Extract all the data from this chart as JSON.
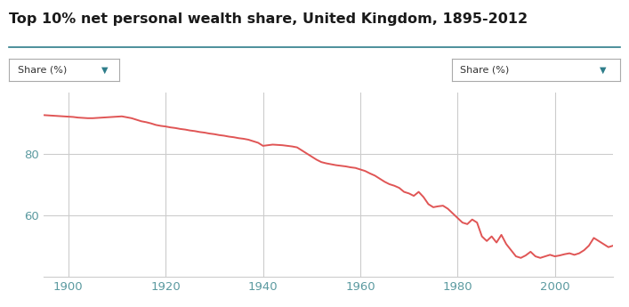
{
  "title": "Top 10% net personal wealth share, United Kingdom, 1895-2012",
  "dropdown_label": "Share (%)",
  "line_color": "#e05555",
  "background_color": "#ffffff",
  "grid_color": "#cccccc",
  "title_color": "#1a1a1a",
  "axis_tick_color": "#5b9aa0",
  "title_line_color": "#2e7d8a",
  "ylim": [
    40,
    100
  ],
  "xlim": [
    1895,
    2012
  ],
  "yticks": [
    60,
    80
  ],
  "xticks": [
    1900,
    1920,
    1940,
    1960,
    1980,
    2000
  ],
  "data": [
    [
      1895,
      92.5
    ],
    [
      1896,
      92.4
    ],
    [
      1897,
      92.3
    ],
    [
      1898,
      92.2
    ],
    [
      1899,
      92.1
    ],
    [
      1900,
      92.0
    ],
    [
      1901,
      91.9
    ],
    [
      1902,
      91.7
    ],
    [
      1903,
      91.6
    ],
    [
      1904,
      91.5
    ],
    [
      1905,
      91.5
    ],
    [
      1906,
      91.6
    ],
    [
      1907,
      91.7
    ],
    [
      1908,
      91.8
    ],
    [
      1909,
      91.9
    ],
    [
      1910,
      92.0
    ],
    [
      1911,
      92.1
    ],
    [
      1912,
      91.8
    ],
    [
      1913,
      91.5
    ],
    [
      1914,
      91.0
    ],
    [
      1915,
      90.5
    ],
    [
      1916,
      90.2
    ],
    [
      1917,
      89.8
    ],
    [
      1918,
      89.3
    ],
    [
      1919,
      89.0
    ],
    [
      1920,
      88.8
    ],
    [
      1921,
      88.5
    ],
    [
      1922,
      88.3
    ],
    [
      1923,
      88.0
    ],
    [
      1924,
      87.8
    ],
    [
      1925,
      87.5
    ],
    [
      1926,
      87.3
    ],
    [
      1927,
      87.0
    ],
    [
      1928,
      86.8
    ],
    [
      1929,
      86.5
    ],
    [
      1930,
      86.3
    ],
    [
      1931,
      86.0
    ],
    [
      1932,
      85.8
    ],
    [
      1933,
      85.5
    ],
    [
      1934,
      85.3
    ],
    [
      1935,
      85.0
    ],
    [
      1936,
      84.8
    ],
    [
      1937,
      84.5
    ],
    [
      1938,
      84.0
    ],
    [
      1939,
      83.5
    ],
    [
      1940,
      82.5
    ],
    [
      1941,
      82.7
    ],
    [
      1942,
      82.9
    ],
    [
      1943,
      82.8
    ],
    [
      1944,
      82.7
    ],
    [
      1945,
      82.5
    ],
    [
      1946,
      82.3
    ],
    [
      1947,
      82.0
    ],
    [
      1948,
      81.0
    ],
    [
      1949,
      80.0
    ],
    [
      1950,
      79.0
    ],
    [
      1951,
      78.0
    ],
    [
      1952,
      77.2
    ],
    [
      1953,
      76.8
    ],
    [
      1954,
      76.5
    ],
    [
      1955,
      76.2
    ],
    [
      1956,
      76.0
    ],
    [
      1957,
      75.8
    ],
    [
      1958,
      75.5
    ],
    [
      1959,
      75.3
    ],
    [
      1960,
      74.8
    ],
    [
      1961,
      74.3
    ],
    [
      1962,
      73.5
    ],
    [
      1963,
      72.8
    ],
    [
      1964,
      71.8
    ],
    [
      1965,
      70.8
    ],
    [
      1966,
      70.0
    ],
    [
      1967,
      69.5
    ],
    [
      1968,
      68.8
    ],
    [
      1969,
      67.5
    ],
    [
      1970,
      67.0
    ],
    [
      1971,
      66.2
    ],
    [
      1972,
      67.5
    ],
    [
      1973,
      65.8
    ],
    [
      1974,
      63.5
    ],
    [
      1975,
      62.5
    ],
    [
      1976,
      62.8
    ],
    [
      1977,
      63.0
    ],
    [
      1978,
      62.0
    ],
    [
      1979,
      60.5
    ],
    [
      1980,
      59.0
    ],
    [
      1981,
      57.5
    ],
    [
      1982,
      57.0
    ],
    [
      1983,
      58.5
    ],
    [
      1984,
      57.5
    ],
    [
      1985,
      53.0
    ],
    [
      1986,
      51.5
    ],
    [
      1987,
      53.0
    ],
    [
      1988,
      51.0
    ],
    [
      1989,
      53.5
    ],
    [
      1990,
      50.5
    ],
    [
      1991,
      48.5
    ],
    [
      1992,
      46.5
    ],
    [
      1993,
      46.0
    ],
    [
      1994,
      46.8
    ],
    [
      1995,
      48.0
    ],
    [
      1996,
      46.5
    ],
    [
      1997,
      46.0
    ],
    [
      1998,
      46.5
    ],
    [
      1999,
      47.0
    ],
    [
      2000,
      46.5
    ],
    [
      2001,
      46.8
    ],
    [
      2002,
      47.2
    ],
    [
      2003,
      47.5
    ],
    [
      2004,
      47.0
    ],
    [
      2005,
      47.5
    ],
    [
      2006,
      48.5
    ],
    [
      2007,
      50.0
    ],
    [
      2008,
      52.5
    ],
    [
      2009,
      51.5
    ],
    [
      2010,
      50.5
    ],
    [
      2011,
      49.5
    ],
    [
      2012,
      50.0
    ]
  ]
}
